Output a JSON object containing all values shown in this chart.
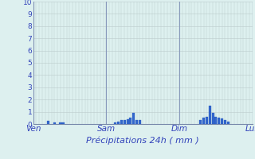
{
  "title": "Précipitations 24h ( mm )",
  "xlabel": "Précipitations 24h ( mm )",
  "ylim": [
    0,
    10
  ],
  "yticks": [
    0,
    1,
    2,
    3,
    4,
    5,
    6,
    7,
    8,
    9,
    10
  ],
  "background_color": "#ddf0ef",
  "plot_bg_color": "#ddf0ef",
  "bar_color": "#3366cc",
  "bar_edge_color": "#2255bb",
  "day_labels": [
    "Ven",
    "Sam",
    "Dim",
    "Lun"
  ],
  "day_positions": [
    0,
    24,
    48,
    72
  ],
  "day_line_color": "#8899bb",
  "total_hours": 72,
  "grid_color": "#bbcccc",
  "tick_label_color": "#3344bb",
  "xlabel_color": "#3344bb",
  "bars": [
    {
      "hour": 5,
      "value": 0.25
    },
    {
      "hour": 7,
      "value": 0.15
    },
    {
      "hour": 9,
      "value": 0.1
    },
    {
      "hour": 10,
      "value": 0.1
    },
    {
      "hour": 27,
      "value": 0.1
    },
    {
      "hour": 28,
      "value": 0.2
    },
    {
      "hour": 29,
      "value": 0.3
    },
    {
      "hour": 30,
      "value": 0.35
    },
    {
      "hour": 31,
      "value": 0.4
    },
    {
      "hour": 32,
      "value": 0.5
    },
    {
      "hour": 33,
      "value": 0.9
    },
    {
      "hour": 34,
      "value": 0.35
    },
    {
      "hour": 35,
      "value": 0.3
    },
    {
      "hour": 55,
      "value": 0.3
    },
    {
      "hour": 56,
      "value": 0.55
    },
    {
      "hour": 57,
      "value": 0.6
    },
    {
      "hour": 58,
      "value": 1.5
    },
    {
      "hour": 59,
      "value": 0.9
    },
    {
      "hour": 60,
      "value": 0.6
    },
    {
      "hour": 61,
      "value": 0.5
    },
    {
      "hour": 62,
      "value": 0.45
    },
    {
      "hour": 63,
      "value": 0.35
    },
    {
      "hour": 64,
      "value": 0.2
    }
  ]
}
